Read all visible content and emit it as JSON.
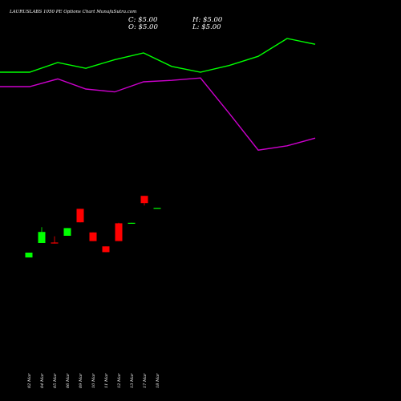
{
  "chart_data": {
    "type": "candlestick",
    "title": "LAURUSLABS 1050 PE Options  Chart MunafaSutra.com",
    "ohlc_readout": {
      "close": "C: $5.00",
      "open": "O: $5.00",
      "high": "H: $5.00",
      "low": "L: $5.00"
    },
    "dates": [
      "02 Mar",
      "04 Mar",
      "05 Mar",
      "06 Mar",
      "09 Mar",
      "10 Mar",
      "11 Mar",
      "12 Mar",
      "13 Mar",
      "17 Mar",
      "18 Mar"
    ],
    "candles": [
      {
        "date": "02 Mar",
        "open": 14.5,
        "high": 15.5,
        "low": 14.5,
        "close": 15.5
      },
      {
        "date": "04 Mar",
        "open": 17.5,
        "high": 20.8,
        "low": 17.5,
        "close": 19.8
      },
      {
        "date": "05 Mar",
        "open": 17.6,
        "high": 18.9,
        "low": 17.4,
        "close": 17.4
      },
      {
        "date": "06 Mar",
        "open": 19.0,
        "high": 20.6,
        "low": 19.0,
        "close": 20.6
      },
      {
        "date": "09 Mar",
        "open": 24.6,
        "high": 24.6,
        "low": 21.8,
        "close": 21.8
      },
      {
        "date": "10 Mar",
        "open": 19.7,
        "high": 19.7,
        "low": 17.9,
        "close": 17.9
      },
      {
        "date": "11 Mar",
        "open": 16.8,
        "high": 16.8,
        "low": 15.6,
        "close": 15.6
      },
      {
        "date": "12 Mar",
        "open": 21.6,
        "high": 21.7,
        "low": 17.9,
        "close": 17.9
      },
      {
        "date": "13 Mar",
        "open": 21.7,
        "high": 21.7,
        "low": 21.6,
        "close": 21.7
      },
      {
        "date": "17 Mar",
        "open": 27.3,
        "high": 27.3,
        "low": 25.3,
        "close": 25.8
      },
      {
        "date": "18 Mar",
        "open": 24.7,
        "high": 24.8,
        "low": 24.7,
        "close": 24.8
      }
    ],
    "overlay_lines": [
      {
        "color": "#00ff00",
        "x": [
          0,
          37,
          72,
          107,
          143,
          179,
          214,
          250,
          286,
          322,
          358,
          393
        ],
        "values": [
          53.0,
          53.0,
          55.0,
          53.8,
          55.6,
          57.0,
          54.2,
          53.0,
          54.4,
          56.3,
          60.0,
          58.8
        ]
      },
      {
        "color": "#cc00cc",
        "x": [
          0,
          37,
          72,
          107,
          143,
          179,
          214,
          250,
          286,
          322,
          358,
          393
        ],
        "values": [
          50.0,
          50.0,
          51.6,
          49.5,
          48.9,
          51.0,
          51.3,
          51.8,
          44.4,
          36.8,
          37.7,
          39.3
        ]
      }
    ],
    "bullish_color": "#00ff00",
    "bearish_color": "#ff0000",
    "ylim": [
      0,
      68
    ],
    "grid": false,
    "background": "#000000"
  }
}
